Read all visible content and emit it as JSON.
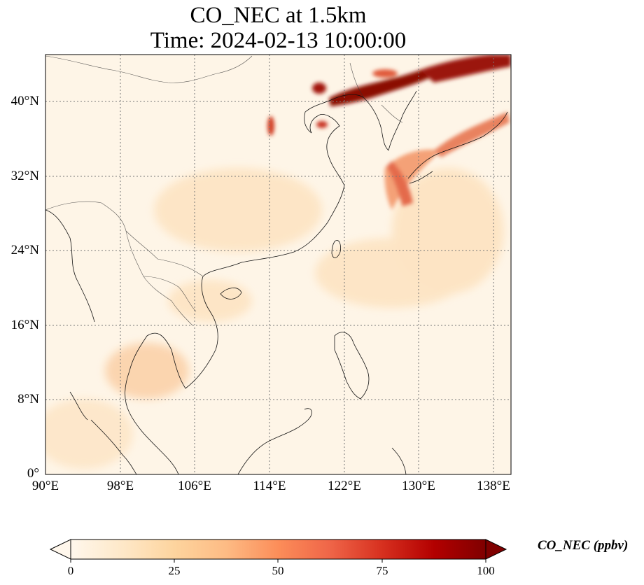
{
  "title": {
    "line1": "CO_NEC at 1.5km",
    "line2": "Time: 2024-02-13 10:00:00"
  },
  "map": {
    "variable": "CO_NEC",
    "lon_range": [
      90,
      140
    ],
    "lat_range": [
      0,
      45
    ],
    "gridlines": true,
    "lon_ticks": [
      "90°E",
      "98°E",
      "106°E",
      "114°E",
      "122°E",
      "130°E",
      "138°E"
    ],
    "lat_ticks": [
      "0°",
      "8°N",
      "16°N",
      "24°N",
      "32°N",
      "40°N"
    ],
    "coastlines": true,
    "borders": true
  },
  "colorbar": {
    "label": "CO_NEC (ppbv)",
    "ticks": [
      "0",
      "25",
      "50",
      "75",
      "100"
    ],
    "range": [
      0,
      100
    ],
    "extend": "both",
    "colormap": "OrRd",
    "colors": [
      "#fff7ec",
      "#fee8c8",
      "#fdd49e",
      "#fdbb84",
      "#fc8d59",
      "#ef6548",
      "#d7301f",
      "#b30000",
      "#7f0000"
    ]
  }
}
